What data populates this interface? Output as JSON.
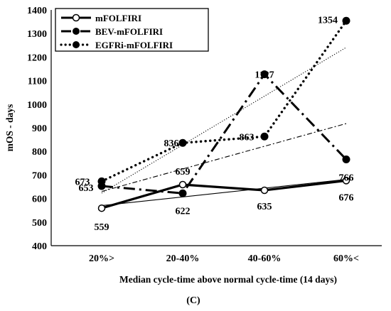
{
  "chart_data": {
    "type": "line",
    "caption": "(C)",
    "xlabel": "Median cycle-time above normal cycle-time (14 days)",
    "ylabel": "mOS - days",
    "ylim": [
      400,
      1400
    ],
    "yticks": [
      400,
      500,
      600,
      700,
      800,
      900,
      1000,
      1100,
      1200,
      1300,
      1400
    ],
    "categories": [
      "20%>",
      "20-40%",
      "40-60%",
      "60%<"
    ],
    "legend_position": "top-left",
    "grid": false,
    "series": [
      {
        "name": "mFOLFIRI",
        "style": "solid",
        "marker": "open-circle",
        "values": [
          559,
          659,
          635,
          676
        ],
        "labels": [
          "559",
          "659",
          "635",
          "676"
        ],
        "trend": [
          570,
          607,
          644,
          681
        ]
      },
      {
        "name": "BEV-mFOLFIRI",
        "style": "dash-dot",
        "marker": "filled-circle",
        "values": [
          653,
          622,
          1127,
          766
        ],
        "labels": [
          "653",
          "622",
          "1127",
          "766"
        ],
        "trend": [
          630,
          726,
          822,
          918
        ]
      },
      {
        "name": "EGFRi-mFOLFIRI",
        "style": "dotted",
        "marker": "filled-circle",
        "values": [
          673,
          836,
          863,
          1354
        ],
        "labels": [
          "673",
          "836",
          "863",
          "1354"
        ],
        "trend": [
          623,
          829,
          1035,
          1241
        ]
      }
    ]
  }
}
